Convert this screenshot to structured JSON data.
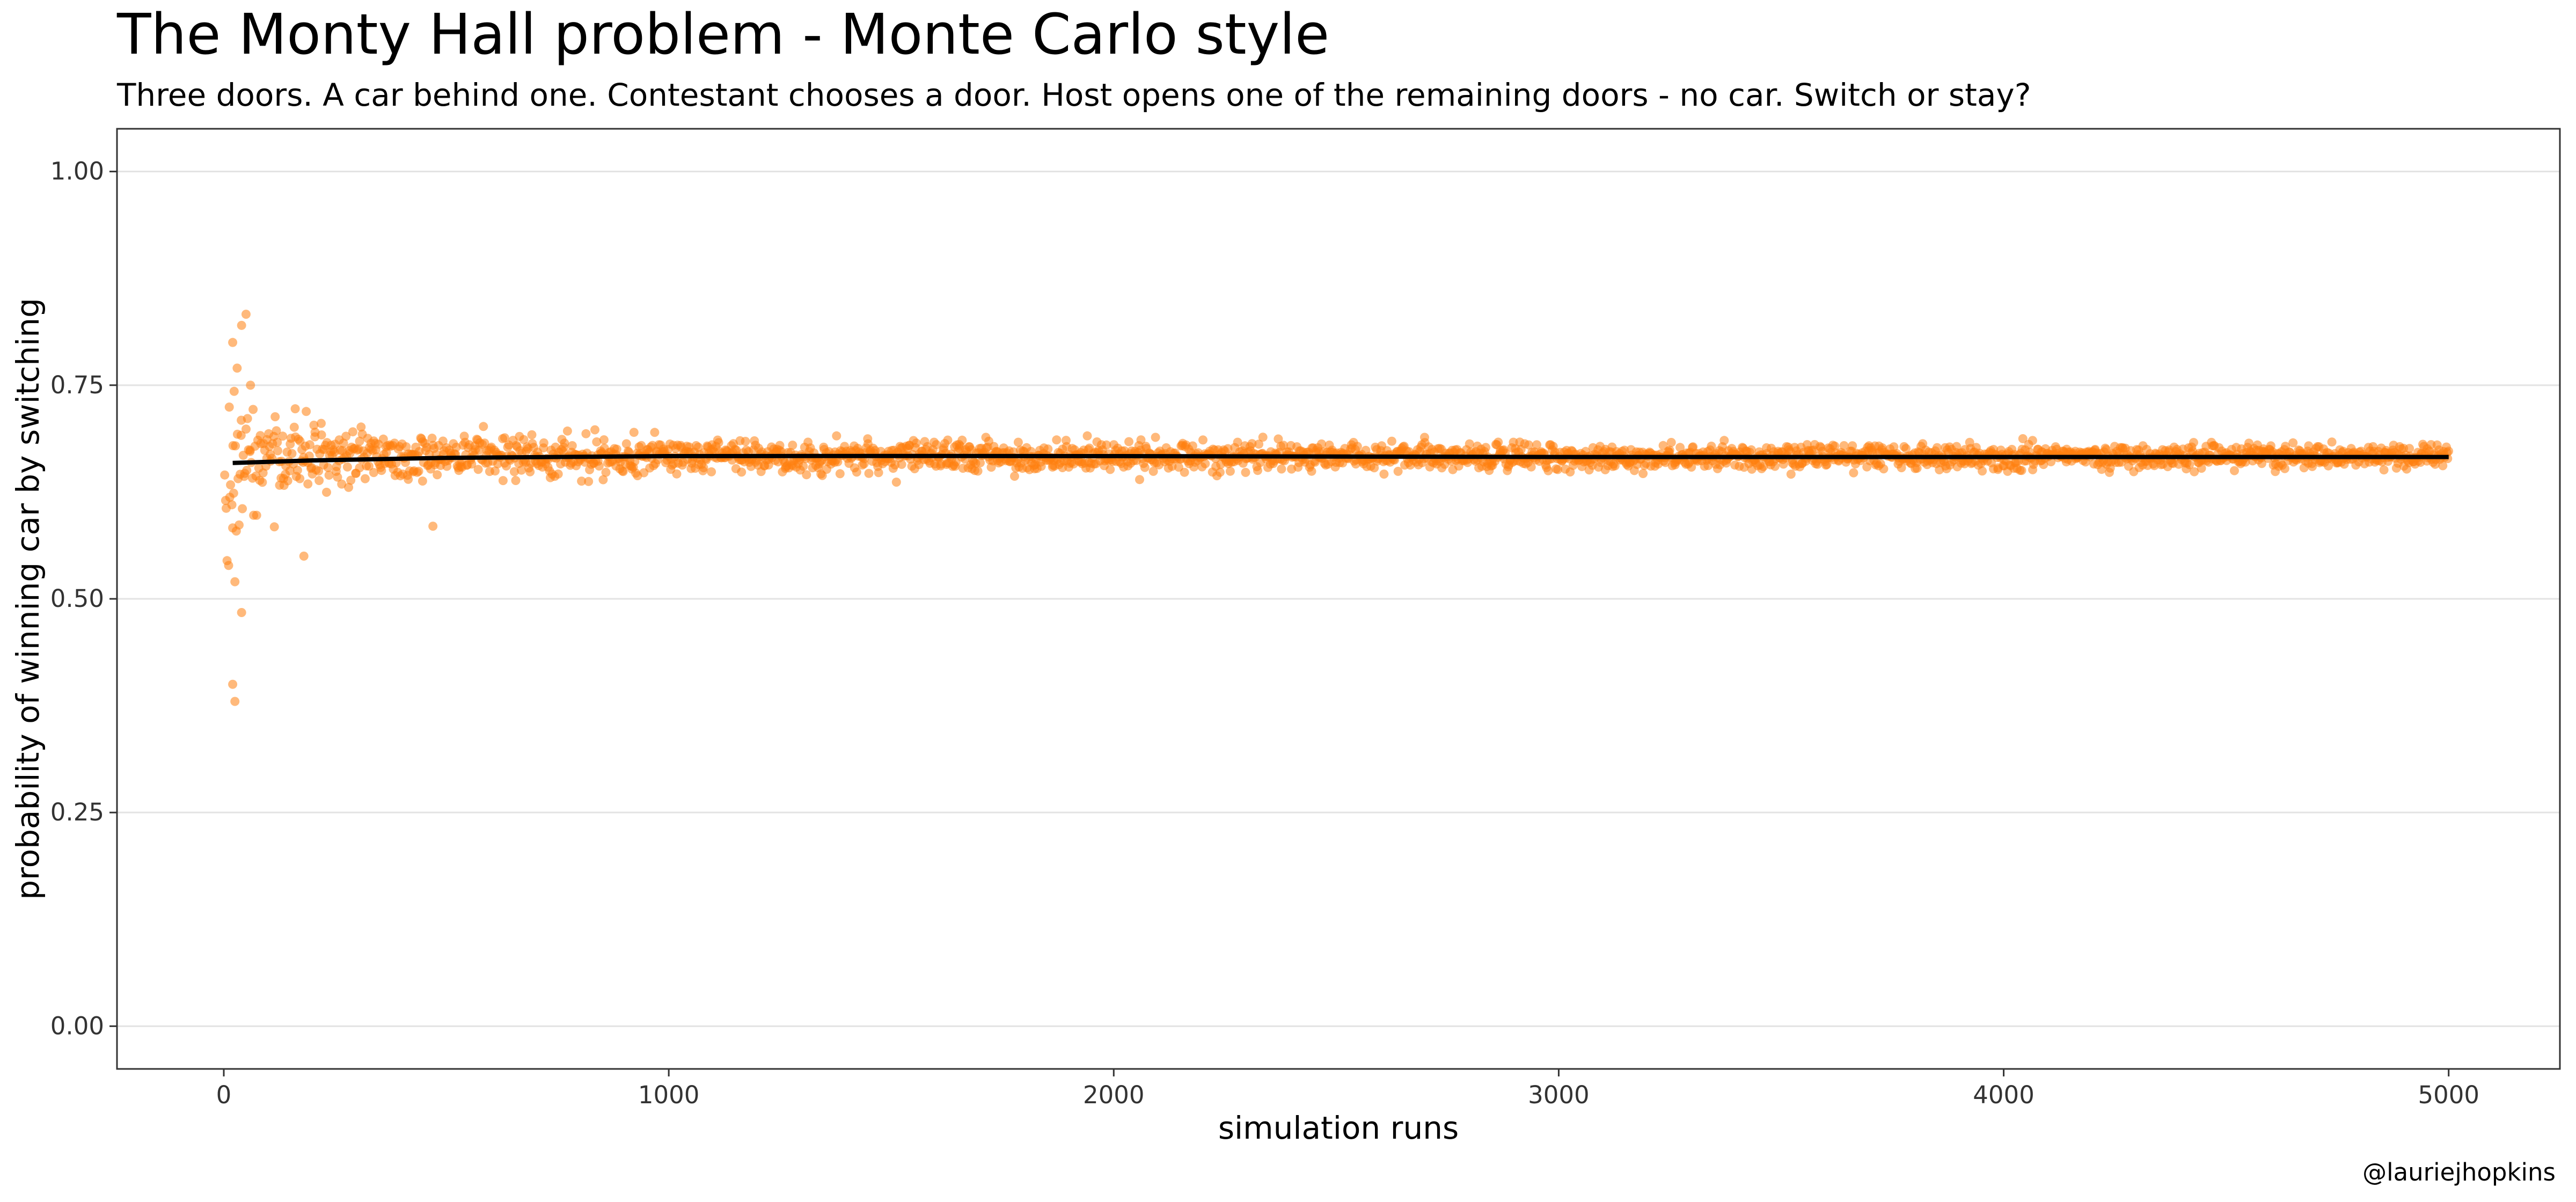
{
  "chart_data": {
    "type": "scatter",
    "title": "The Monty Hall problem - Monte Carlo style",
    "subtitle": "Three doors. A car behind one. Contestant chooses a door. Host opens one of the remaining doors - no car. Switch or stay?",
    "xlabel": "simulation runs",
    "ylabel": "probability of winning car by switching",
    "caption": "@lauriejhopkins",
    "xlim": [
      -240,
      5250
    ],
    "ylim": [
      -0.05,
      1.05
    ],
    "x_ticks": [
      0,
      1000,
      2000,
      3000,
      4000,
      5000
    ],
    "x_tick_labels": [
      "0",
      "1000",
      "2000",
      "3000",
      "4000",
      "5000"
    ],
    "y_ticks": [
      0,
      0.25,
      0.5,
      0.75,
      1.0
    ],
    "y_tick_labels": [
      "0.00",
      "0.25",
      "0.50",
      "0.75",
      "1.00"
    ],
    "grid": true,
    "legend": "none",
    "point_color": "#ff7f0e",
    "point_opacity": 0.55,
    "trend_color": "#000000",
    "series": [
      {
        "kind": "points",
        "n_runs": 5000,
        "x_range": [
          1,
          5000
        ],
        "centre": 0.6667,
        "notable_points": [
          {
            "x": 20,
            "y": 0.8
          },
          {
            "x": 30,
            "y": 0.77
          },
          {
            "x": 40,
            "y": 0.82
          },
          {
            "x": 50,
            "y": 0.833
          },
          {
            "x": 60,
            "y": 0.75
          },
          {
            "x": 20,
            "y": 0.583
          },
          {
            "x": 25,
            "y": 0.52
          },
          {
            "x": 40,
            "y": 0.484
          },
          {
            "x": 20,
            "y": 0.4
          },
          {
            "x": 25,
            "y": 0.38
          },
          {
            "x": 180,
            "y": 0.55
          },
          {
            "x": 470,
            "y": 0.585
          }
        ]
      },
      {
        "kind": "trend",
        "x": [
          20,
          200,
          500,
          1000,
          1500,
          2000,
          3000,
          4000,
          5000
        ],
        "y": [
          0.659,
          0.662,
          0.665,
          0.667,
          0.6672,
          0.667,
          0.666,
          0.666,
          0.666
        ]
      }
    ]
  }
}
